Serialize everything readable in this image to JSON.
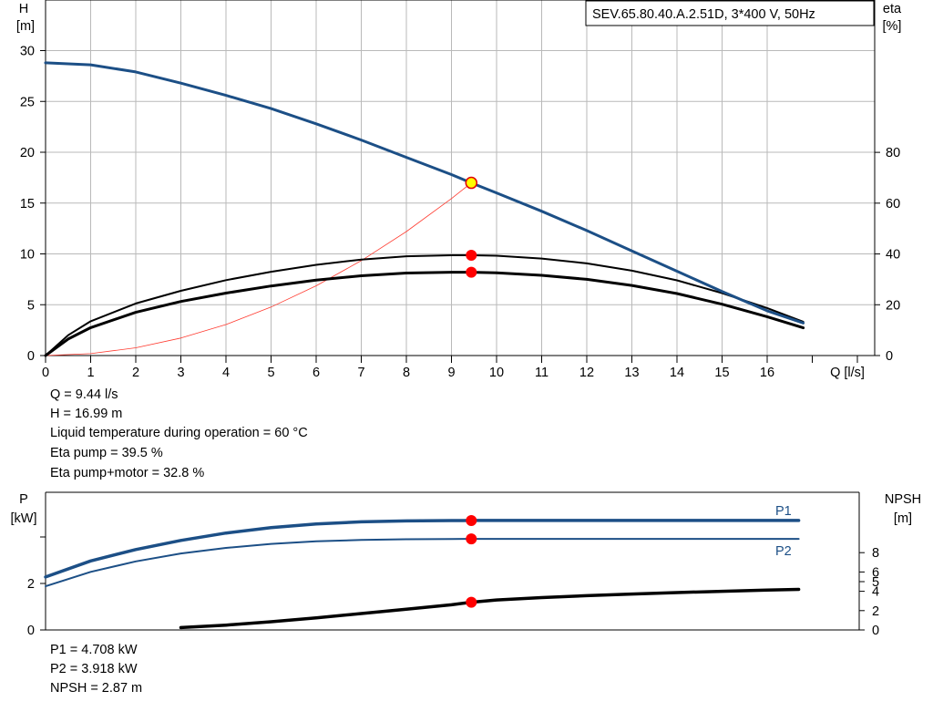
{
  "colors": {
    "head_curve": "#1c4f86",
    "power_curve": "#1c4f86",
    "eta_curve": "#000000",
    "npsh_curve": "#000000",
    "system_curve": "#ff3b30",
    "duty_point": "#ff0000",
    "duty_point_head_fill": "#ffff00",
    "axis": "#000000",
    "background": "#ffffff"
  },
  "pump_label": "SEV.65.80.40.A.2.51D, 3*400 V, 50Hz",
  "info_top": [
    "Q = 9.44 l/s",
    "H = 16.99 m",
    "Liquid temperature during operation = 60 °C",
    "Eta pump = 39.5 %",
    "Eta pump+motor = 32.8 %"
  ],
  "info_bottom": [
    "P1 = 4.708 kW",
    "P2 = 3.918 kW",
    "NPSH = 2.87 m"
  ],
  "chart_data": [
    {
      "type": "line",
      "title": "SEV.65.80.40.A.2.51D, 3*400 V, 50Hz",
      "x_axis": {
        "label": "Q [l/s]",
        "range": [
          0,
          18
        ],
        "ticks": [
          0,
          1,
          2,
          3,
          4,
          5,
          6,
          7,
          8,
          9,
          10,
          11,
          12,
          13,
          14,
          15,
          16
        ]
      },
      "y_left": {
        "label_top": "H",
        "label_unit": "[m]",
        "range": [
          0,
          35
        ],
        "ticks": [
          0,
          5,
          10,
          15,
          20,
          25,
          30
        ]
      },
      "y_right": {
        "label_top": "eta",
        "label_unit": "[%]",
        "range": [
          0,
          140
        ],
        "ticks": [
          0,
          20,
          40,
          60,
          80
        ]
      },
      "grid": true,
      "series": [
        {
          "key": "H",
          "axis": "left",
          "points": [
            [
              0,
              28.8
            ],
            [
              1,
              28.6
            ],
            [
              2,
              27.9
            ],
            [
              3,
              26.8
            ],
            [
              4,
              25.6
            ],
            [
              5,
              24.3
            ],
            [
              6,
              22.8
            ],
            [
              7,
              21.2
            ],
            [
              8,
              19.5
            ],
            [
              9,
              17.8
            ],
            [
              9.44,
              16.99
            ],
            [
              10,
              16.0
            ],
            [
              11,
              14.2
            ],
            [
              12,
              12.3
            ],
            [
              13,
              10.3
            ],
            [
              14,
              8.3
            ],
            [
              15,
              6.3
            ],
            [
              16,
              4.4
            ],
            [
              16.8,
              3.2
            ]
          ]
        },
        {
          "key": "Eta pump",
          "axis": "right",
          "points": [
            [
              0,
              0
            ],
            [
              0.5,
              8
            ],
            [
              1,
              13.5
            ],
            [
              2,
              20.5
            ],
            [
              3,
              25.5
            ],
            [
              4,
              29.7
            ],
            [
              5,
              33.0
            ],
            [
              6,
              35.7
            ],
            [
              7,
              37.8
            ],
            [
              8,
              39.1
            ],
            [
              9,
              39.5
            ],
            [
              9.44,
              39.5
            ],
            [
              10,
              39.3
            ],
            [
              11,
              38.2
            ],
            [
              12,
              36.3
            ],
            [
              13,
              33.4
            ],
            [
              14,
              29.6
            ],
            [
              15,
              24.6
            ],
            [
              16,
              18.7
            ],
            [
              16.8,
              13.3
            ]
          ]
        },
        {
          "key": "Eta pump+motor",
          "axis": "right",
          "points": [
            [
              0,
              0
            ],
            [
              0.5,
              6.5
            ],
            [
              1,
              11
            ],
            [
              2,
              17
            ],
            [
              3,
              21.3
            ],
            [
              4,
              24.6
            ],
            [
              5,
              27.4
            ],
            [
              6,
              29.7
            ],
            [
              7,
              31.4
            ],
            [
              8,
              32.5
            ],
            [
              9,
              32.8
            ],
            [
              9.44,
              32.8
            ],
            [
              10,
              32.6
            ],
            [
              11,
              31.6
            ],
            [
              12,
              30.0
            ],
            [
              13,
              27.6
            ],
            [
              14,
              24.4
            ],
            [
              15,
              20.2
            ],
            [
              16,
              15.3
            ],
            [
              16.8,
              10.9
            ]
          ]
        },
        {
          "key": "System curve",
          "axis": "left",
          "points": [
            [
              0,
              0
            ],
            [
              1,
              0.19
            ],
            [
              2,
              0.76
            ],
            [
              3,
              1.72
            ],
            [
              4,
              3.05
            ],
            [
              5,
              4.77
            ],
            [
              6,
              6.86
            ],
            [
              7,
              9.34
            ],
            [
              8,
              12.2
            ],
            [
              9,
              15.44
            ],
            [
              9.44,
              16.99
            ]
          ]
        }
      ],
      "duty_points": [
        {
          "series": "H",
          "x": 9.44,
          "y": 16.99
        },
        {
          "series": "Eta pump",
          "x": 9.44,
          "y": 39.5
        },
        {
          "series": "Eta pump+motor",
          "x": 9.44,
          "y": 32.8
        }
      ]
    },
    {
      "type": "line",
      "x_axis": {
        "range": [
          0,
          18
        ]
      },
      "y_left": {
        "label_top": "P",
        "label_unit": "[kW]",
        "range": [
          0,
          6
        ],
        "ticks": [
          0,
          2
        ]
      },
      "y_right": {
        "label_top": "NPSH",
        "label_unit": "[m]",
        "range": [
          0,
          20
        ],
        "ticks": [
          0,
          2,
          4,
          5,
          6,
          8
        ]
      },
      "grid": false,
      "series": [
        {
          "name": "P1",
          "axis": "left",
          "points": [
            [
              0,
              2.28
            ],
            [
              1,
              2.97
            ],
            [
              2,
              3.46
            ],
            [
              3,
              3.85
            ],
            [
              4,
              4.17
            ],
            [
              5,
              4.4
            ],
            [
              6,
              4.56
            ],
            [
              7,
              4.65
            ],
            [
              8,
              4.69
            ],
            [
              9,
              4.705
            ],
            [
              9.44,
              4.708
            ],
            [
              10,
              4.708
            ],
            [
              12,
              4.708
            ],
            [
              14,
              4.708
            ],
            [
              16.7,
              4.708
            ]
          ]
        },
        {
          "name": "P2",
          "axis": "left",
          "points": [
            [
              0,
              1.88
            ],
            [
              1,
              2.5
            ],
            [
              2,
              2.95
            ],
            [
              3,
              3.29
            ],
            [
              4,
              3.53
            ],
            [
              5,
              3.7
            ],
            [
              6,
              3.81
            ],
            [
              7,
              3.87
            ],
            [
              8,
              3.9
            ],
            [
              9,
              3.915
            ],
            [
              9.44,
              3.918
            ],
            [
              10,
              3.918
            ],
            [
              12,
              3.918
            ],
            [
              14,
              3.918
            ],
            [
              16.7,
              3.918
            ]
          ]
        },
        {
          "key": "NPSH",
          "axis": "right",
          "points": [
            [
              3,
              0.25
            ],
            [
              4,
              0.5
            ],
            [
              5,
              0.85
            ],
            [
              6,
              1.25
            ],
            [
              7,
              1.7
            ],
            [
              8,
              2.15
            ],
            [
              9,
              2.6
            ],
            [
              9.44,
              2.87
            ],
            [
              10,
              3.1
            ],
            [
              11,
              3.35
            ],
            [
              12,
              3.55
            ],
            [
              13,
              3.72
            ],
            [
              14,
              3.87
            ],
            [
              15,
              4.0
            ],
            [
              16,
              4.12
            ],
            [
              16.7,
              4.2
            ]
          ]
        }
      ],
      "duty_points": [
        {
          "series": "P1",
          "x": 9.44,
          "y": 4.708
        },
        {
          "series": "P2",
          "x": 9.44,
          "y": 3.918
        },
        {
          "series": "NPSH",
          "x": 9.44,
          "y": 2.87
        }
      ]
    }
  ]
}
